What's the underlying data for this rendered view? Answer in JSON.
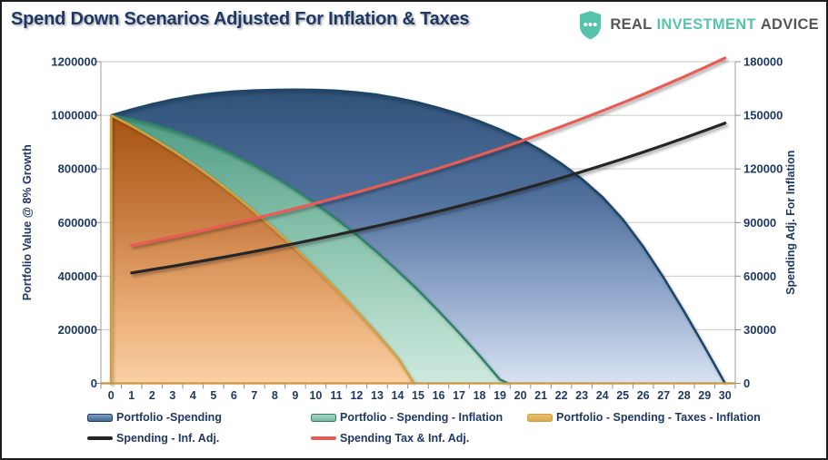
{
  "header": {
    "title": "Spend Down Scenarios Adjusted For Inflation & Taxes",
    "title_color": "#1F3864",
    "logo": {
      "words": [
        "REAL",
        "INVESTMENT",
        "ADVICE"
      ],
      "shield_color": "#56C3AC",
      "text_dark": "#54565A",
      "text_teal": "#57C4AD"
    }
  },
  "chart_data": {
    "type": "area+line combo",
    "title": "Spend Down Scenarios Adjusted For Inflation & Taxes",
    "grid_color": "#CACACA",
    "x_axis": {
      "categories": [
        "0",
        "1",
        "2",
        "3",
        "4",
        "5",
        "6",
        "7",
        "8",
        "9",
        "10",
        "11",
        "12",
        "13",
        "14",
        "15",
        "16",
        "17",
        "18",
        "19",
        "20",
        "21",
        "22",
        "23",
        "24",
        "25",
        "26",
        "27",
        "28",
        "29",
        "30"
      ],
      "axis_line_color": "#C9973B"
    },
    "left_axis": {
      "title": "Portfolio Value @ 8% Growth",
      "min": 0,
      "max": 1200000,
      "step": 200000,
      "ticks": [
        "0",
        "200000",
        "400000",
        "600000",
        "800000",
        "1000000",
        "1200000"
      ],
      "label_color": "#1F3864"
    },
    "right_axis": {
      "title": "Spending Adj. For Inflation",
      "min": 0,
      "max": 180000,
      "step": 30000,
      "ticks": [
        "0",
        "30000",
        "60000",
        "90000",
        "120000",
        "150000",
        "180000"
      ],
      "label_color": "#1F3864"
    },
    "series": [
      {
        "name": "Portfolio -Spending",
        "type": "area",
        "axis": "left",
        "border": "#1C4467",
        "fill_stops": [
          "#2F5278",
          "#51719D",
          "#93A9CC",
          "#D8E3F2"
        ],
        "legend_fill_light": "#7F9DC4",
        "legend_fill_dark": "#46678F",
        "x": [
          0,
          1,
          2,
          3,
          4,
          5,
          6,
          7,
          8,
          9,
          10,
          11,
          12,
          13,
          14,
          15,
          16,
          17,
          18,
          19,
          20,
          21,
          22,
          23,
          24,
          25,
          26,
          27,
          28,
          29,
          30
        ],
        "values": [
          1000000,
          1022000,
          1042000,
          1059000,
          1072000,
          1082000,
          1089000,
          1093000,
          1095000,
          1096000,
          1095000,
          1092000,
          1086000,
          1077000,
          1064000,
          1048000,
          1028000,
          1005000,
          978000,
          947000,
          912000,
          870000,
          820000,
          763000,
          696000,
          612000,
          510000,
          394000,
          268000,
          136000,
          0
        ]
      },
      {
        "name": "Portfolio - Spending - Inflation",
        "type": "area",
        "axis": "left",
        "border": "#2F8169",
        "fill_stops": [
          "#4F9C84",
          "#7FBCA6",
          "#A9D5C2",
          "#CDE9DE"
        ],
        "legend_fill_light": "#A8D5C2",
        "legend_fill_dark": "#79B89E",
        "x": [
          0,
          1,
          2,
          3,
          4,
          5,
          6,
          7,
          8,
          9,
          10,
          11,
          12,
          13,
          14,
          15,
          16,
          17,
          18,
          19,
          19.4
        ],
        "values": [
          1000000,
          986000,
          968000,
          945000,
          918000,
          888000,
          852000,
          813000,
          770000,
          722000,
          670000,
          614000,
          554000,
          489000,
          420000,
          348000,
          270000,
          189000,
          104000,
          14000,
          0
        ]
      },
      {
        "name": "Portfolio - Spending - Taxes - Inflation",
        "type": "area",
        "axis": "left",
        "border": "#D0A13C",
        "fill_stops": [
          "#A65312",
          "#C87C41",
          "#E8A970",
          "#FAD0A4"
        ],
        "legend_fill_light": "#E8BD72",
        "legend_fill_dark": "#D9A94E",
        "x": [
          0,
          1,
          2,
          3,
          4,
          5,
          6,
          7,
          8,
          9,
          10,
          11,
          12,
          13,
          14,
          14.8
        ],
        "values": [
          1000000,
          960000,
          916000,
          869000,
          818000,
          763000,
          704000,
          641000,
          574000,
          504000,
          430000,
          352000,
          270000,
          185000,
          96000,
          0
        ]
      },
      {
        "name": "Spending - Inf. Adj.",
        "type": "line",
        "axis": "right",
        "color": "#252525",
        "x": [
          1,
          2,
          3,
          4,
          5,
          6,
          7,
          8,
          9,
          10,
          11,
          12,
          13,
          14,
          15,
          16,
          17,
          18,
          19,
          20,
          21,
          22,
          23,
          24,
          25,
          26,
          27,
          28,
          29,
          30
        ],
        "values": [
          61800,
          63654,
          65564,
          67531,
          69556,
          71643,
          73793,
          76007,
          78287,
          80635,
          83054,
          85546,
          88112,
          90756,
          93478,
          96283,
          99171,
          102146,
          105211,
          108367,
          111618,
          114966,
          118415,
          121968,
          125627,
          129396,
          133278,
          137276,
          141394,
          145636
        ]
      },
      {
        "name": "Spending Tax & Inf. Adj.",
        "type": "line",
        "axis": "right",
        "color": "#E85B52",
        "x": [
          1,
          2,
          3,
          4,
          5,
          6,
          7,
          8,
          9,
          10,
          11,
          12,
          13,
          14,
          15,
          16,
          17,
          18,
          19,
          20,
          21,
          22,
          23,
          24,
          25,
          26,
          27,
          28,
          29,
          30
        ],
        "values": [
          77250,
          79568,
          81955,
          84413,
          86946,
          89554,
          92241,
          95008,
          97858,
          100794,
          103818,
          106932,
          110140,
          113444,
          116848,
          120353,
          123964,
          127683,
          131513,
          135459,
          139522,
          143708,
          148019,
          152460,
          157034,
          161745,
          166597,
          171595,
          176743,
          182045
        ]
      }
    ],
    "legend_position": "bottom"
  }
}
